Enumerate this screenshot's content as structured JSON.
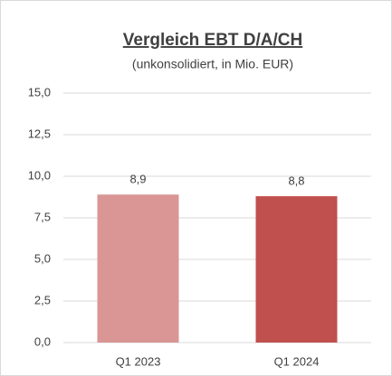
{
  "chart_data": {
    "type": "bar",
    "title": "Vergleich EBT D/A/CH",
    "subtitle": "(unkonsolidiert, in Mio. EUR)",
    "categories": [
      "Q1 2023",
      "Q1 2024"
    ],
    "values": [
      8.9,
      8.8
    ],
    "value_labels": [
      "8,9",
      "8,8"
    ],
    "colors": [
      "#d99694",
      "#c0504d"
    ],
    "ylim": [
      0,
      15
    ],
    "yticks": [
      {
        "value": 0,
        "label": "0,0"
      },
      {
        "value": 2.5,
        "label": "2,5"
      },
      {
        "value": 5,
        "label": "5,0"
      },
      {
        "value": 7.5,
        "label": "7,5"
      },
      {
        "value": 10,
        "label": "10,0"
      },
      {
        "value": 12.5,
        "label": "12,5"
      },
      {
        "value": 15,
        "label": "15,0"
      }
    ],
    "grid": true
  }
}
